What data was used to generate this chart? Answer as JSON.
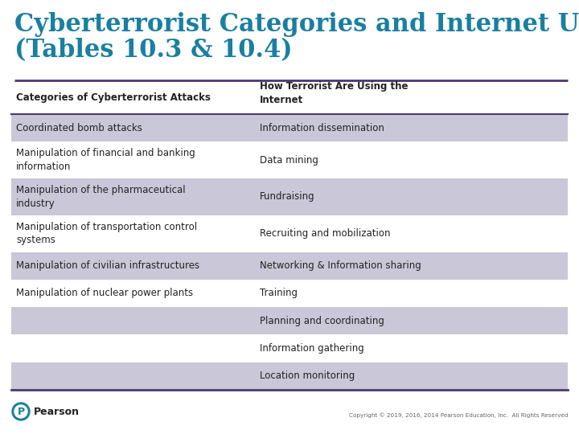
{
  "title_line1": "Cyberterrorist Categories and Internet Use",
  "title_line2": "(Tables 10.3 & 10.4)",
  "title_color": "#1a7fa0",
  "background_color": "#ffffff",
  "header_row": [
    "Categories of Cyberterrorist Attacks",
    "How Terrorist Are Using the\nInternet"
  ],
  "col1_data": [
    "Coordinated bomb attacks",
    "Manipulation of financial and banking\ninformation",
    "Manipulation of the pharmaceutical\nindustry",
    "Manipulation of transportation control\nsystems",
    "Manipulation of civilian infrastructures",
    "Manipulation of nuclear power plants",
    "",
    "",
    ""
  ],
  "col2_data": [
    "Information dissemination",
    "Data mining",
    "Fundraising",
    "Recruiting and mobilization",
    "Networking & Information sharing",
    "Training",
    "Planning and coordinating",
    "Information gathering",
    "Location monitoring"
  ],
  "shaded_rows": [
    0,
    2,
    4,
    6,
    8
  ],
  "row_shade_color": "#cac7d8",
  "white_row_color": "#ffffff",
  "separator_color": "#4a3870",
  "text_color": "#222222",
  "footer_text": "Copyright © 2019, 2016, 2014 Pearson Education, Inc.  All Rights Reserved",
  "pearson_text": "Pearson",
  "pearson_logo_color": "#1a7fa0"
}
